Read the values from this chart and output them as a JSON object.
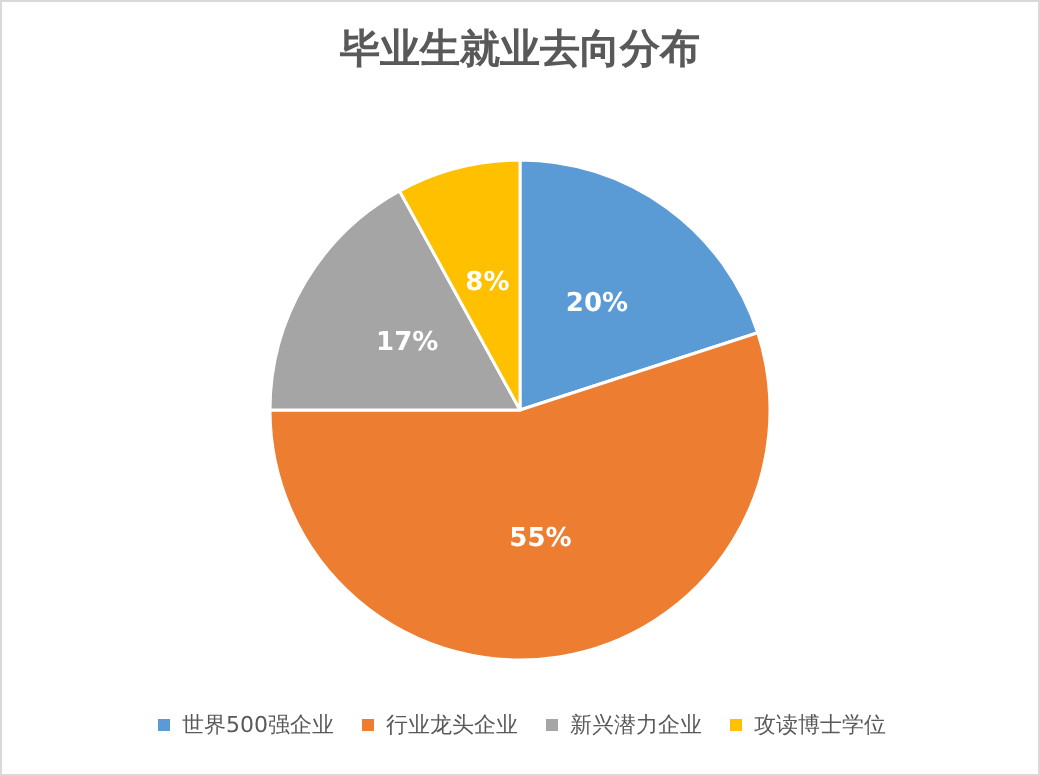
{
  "chart_data": {
    "type": "pie",
    "title": "毕业生就业去向分布",
    "categories": [
      "世界500强企业",
      "行业龙头企业",
      "新兴潜力企业",
      "攻读博士学位"
    ],
    "values": [
      20,
      55,
      17,
      8
    ],
    "colors": [
      "#5b9bd5",
      "#ed7d31",
      "#a5a5a5",
      "#ffc000"
    ],
    "value_labels": [
      "20%",
      "55%",
      "17%",
      "8%"
    ],
    "legend": "bottom"
  }
}
